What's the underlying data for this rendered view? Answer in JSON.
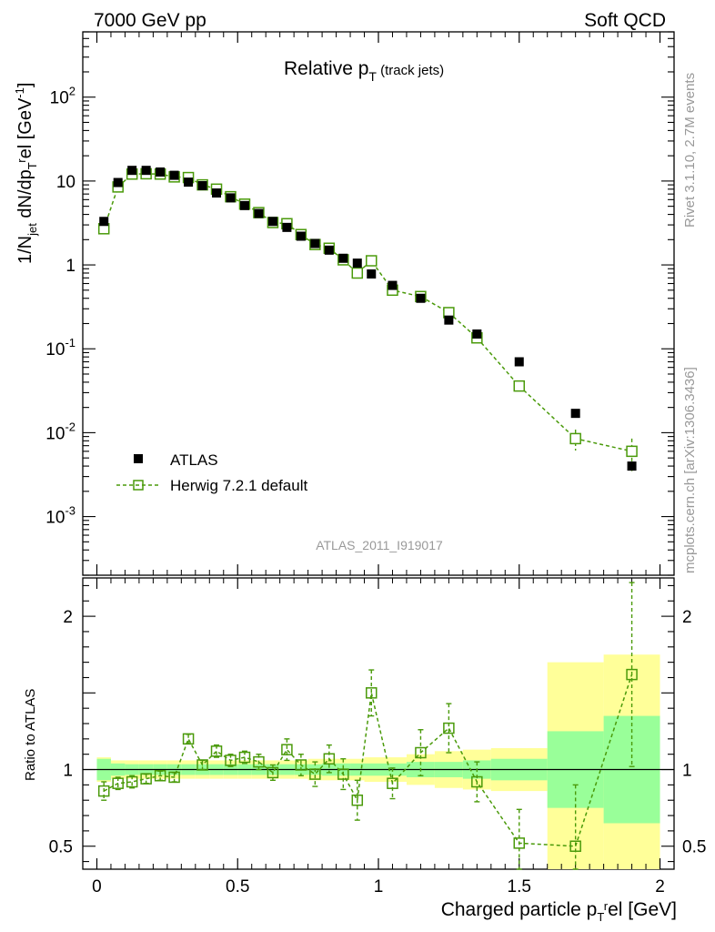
{
  "header": {
    "left": "7000 GeV pp",
    "right": "Soft QCD"
  },
  "side_labels": {
    "top": "Rivet 3.1.10,  2.7M events",
    "bottom": "mcplots.cern.ch [arXiv:1306.3436]"
  },
  "chart_data": {
    "type": "scatter",
    "title": "Relative p_T (track jets)",
    "xlabel": "Charged particle p_T^rel [GeV]",
    "ylabel": "1/N_jet dN/dp_T^rel [GeV^-1]",
    "ratio_ylabel": "Ratio to ATLAS",
    "analysis_label": "ATLAS_2011_I919017",
    "xlim": [
      -0.05,
      2.05
    ],
    "ylim": [
      0.0002,
      600
    ],
    "yscale": "log",
    "ratio_ylim": [
      0.35,
      2.25
    ],
    "x_ticks": [
      "0",
      "0.5",
      "1",
      "1.5",
      "2"
    ],
    "x_tick_values": [
      0,
      0.5,
      1,
      1.5,
      2
    ],
    "y_ticks": [
      "10^-3",
      "10^-2",
      "10^-1",
      "1",
      "10",
      "10^2"
    ],
    "y_tick_values": [
      0.001,
      0.01,
      0.1,
      1,
      10,
      100
    ],
    "ratio_ticks": [
      "0.5",
      "1",
      "2"
    ],
    "ratio_tick_values": [
      0.5,
      1,
      2
    ],
    "legend": {
      "position": "bottom-left",
      "entries": [
        "ATLAS",
        "Herwig 7.2.1 default"
      ]
    },
    "colors": {
      "data": "#000000",
      "mc": "#4a9a0a",
      "band_inner": "#99ff99",
      "band_outer": "#ffff99"
    },
    "x": [
      0.025,
      0.075,
      0.125,
      0.175,
      0.225,
      0.275,
      0.325,
      0.375,
      0.425,
      0.475,
      0.525,
      0.575,
      0.625,
      0.675,
      0.725,
      0.775,
      0.825,
      0.875,
      0.925,
      0.975,
      1.05,
      1.15,
      1.25,
      1.35,
      1.5,
      1.7,
      1.9
    ],
    "series": [
      {
        "name": "ATLAS",
        "values": [
          3.3,
          9.6,
          13.4,
          13.4,
          12.8,
          11.7,
          9.7,
          8.8,
          7.2,
          6.3,
          5.1,
          4.1,
          3.3,
          2.8,
          2.2,
          1.8,
          1.5,
          1.2,
          1.05,
          0.78,
          0.57,
          0.4,
          0.22,
          0.15,
          0.07,
          0.017,
          0.004
        ]
      },
      {
        "name": "Herwig 7.2.1 default",
        "values": [
          2.7,
          8.5,
          12.1,
          12.2,
          12.1,
          11.2,
          11.0,
          9.0,
          8.0,
          6.5,
          5.3,
          4.2,
          3.2,
          3.1,
          2.3,
          1.75,
          1.58,
          1.15,
          0.8,
          1.12,
          0.5,
          0.42,
          0.27,
          0.135,
          0.036,
          0.0085,
          0.006
        ]
      }
    ],
    "ratio": [
      0.86,
      0.91,
      0.92,
      0.94,
      0.96,
      0.95,
      1.2,
      1.03,
      1.12,
      1.06,
      1.08,
      1.05,
      0.98,
      1.13,
      1.03,
      0.97,
      1.07,
      0.97,
      0.8,
      1.5,
      0.91,
      1.11,
      1.27,
      0.92,
      0.52,
      0.5,
      1.62
    ],
    "ratio_err": [
      0.06,
      0.04,
      0.04,
      0.03,
      0.03,
      0.03,
      0.03,
      0.03,
      0.04,
      0.04,
      0.04,
      0.05,
      0.05,
      0.07,
      0.07,
      0.08,
      0.09,
      0.1,
      0.13,
      0.15,
      0.1,
      0.15,
      0.16,
      0.13,
      0.22,
      0.4,
      0.6
    ],
    "band_x_edges": [
      0,
      0.05,
      0.1,
      0.15,
      0.2,
      0.25,
      0.3,
      0.35,
      0.4,
      0.45,
      0.5,
      0.55,
      0.6,
      0.65,
      0.7,
      0.75,
      0.8,
      0.85,
      0.9,
      0.95,
      1.0,
      1.1,
      1.2,
      1.3,
      1.4,
      1.6,
      1.8,
      2.0
    ],
    "band_inner": [
      0.07,
      0.04,
      0.035,
      0.035,
      0.035,
      0.035,
      0.035,
      0.035,
      0.035,
      0.035,
      0.035,
      0.035,
      0.035,
      0.035,
      0.035,
      0.035,
      0.04,
      0.04,
      0.04,
      0.04,
      0.04,
      0.05,
      0.05,
      0.06,
      0.07,
      0.25,
      0.35
    ],
    "band_outer": [
      0.08,
      0.06,
      0.06,
      0.06,
      0.06,
      0.06,
      0.06,
      0.06,
      0.06,
      0.06,
      0.06,
      0.06,
      0.06,
      0.06,
      0.06,
      0.07,
      0.07,
      0.07,
      0.07,
      0.08,
      0.08,
      0.1,
      0.12,
      0.13,
      0.14,
      0.7,
      0.75
    ]
  }
}
